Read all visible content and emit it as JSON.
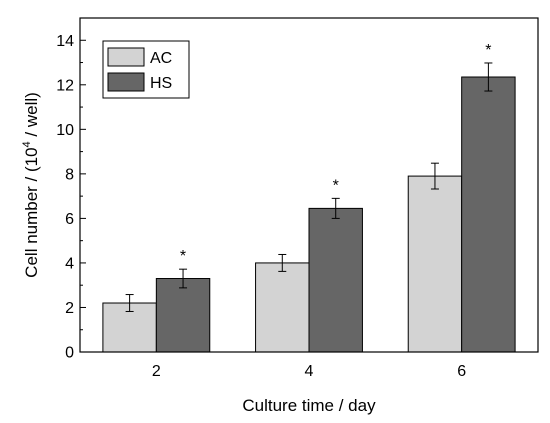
{
  "chart_data": {
    "type": "bar",
    "categories": [
      "2",
      "4",
      "6"
    ],
    "series": [
      {
        "name": "AC",
        "color": "#d3d3d3",
        "values": [
          2.2,
          4.0,
          7.9
        ],
        "errors": [
          0.38,
          0.38,
          0.58
        ]
      },
      {
        "name": "HS",
        "color": "#666666",
        "values": [
          3.3,
          6.45,
          12.35
        ],
        "errors": [
          0.42,
          0.45,
          0.63
        ]
      }
    ],
    "significance": [
      "*",
      "*",
      "*"
    ],
    "xlabel": "Culture time / day",
    "ylabel": {
      "prefix": "Cell number / (10",
      "sup": "4",
      "suffix": " / well)"
    },
    "ylim": [
      0,
      15
    ],
    "yticks": [
      "0",
      "2",
      "4",
      "6",
      "8",
      "10",
      "12",
      "14"
    ],
    "legend_position": "top-left",
    "grid": false
  }
}
